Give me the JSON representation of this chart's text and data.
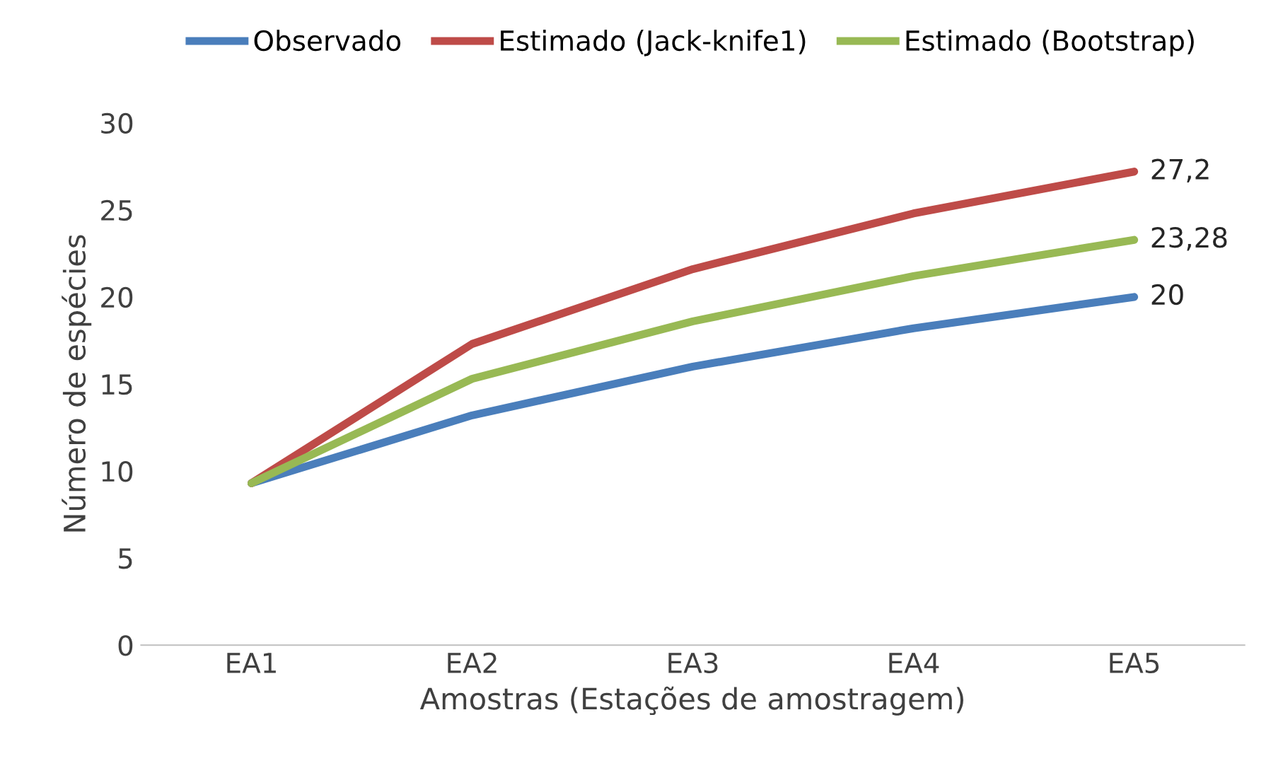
{
  "chart_data": {
    "type": "line",
    "xlabel": "Amostras (Estações de amostragem)",
    "ylabel": "Número de espécies",
    "categories": [
      "EA1",
      "EA2",
      "EA3",
      "EA4",
      "EA5"
    ],
    "series": [
      {
        "name": "Observado",
        "color": "#4a7ebb",
        "values": [
          9.3,
          13.2,
          16.0,
          18.2,
          20
        ],
        "value_labels": [
          null,
          null,
          null,
          null,
          "20"
        ]
      },
      {
        "name": "Estimado (Jack-knife1)",
        "color": "#be4b48",
        "values": [
          9.3,
          17.3,
          21.6,
          24.8,
          27.2
        ],
        "value_labels": [
          null,
          null,
          null,
          null,
          "27,2"
        ]
      },
      {
        "name": "Estimado (Bootstrap)",
        "color": "#98b954",
        "values": [
          9.3,
          15.3,
          18.6,
          21.2,
          23.28
        ],
        "value_labels": [
          null,
          null,
          null,
          null,
          "23,28"
        ]
      }
    ],
    "ylim": [
      0,
      30
    ],
    "yticks": [
      0,
      5,
      10,
      15,
      20,
      25,
      30
    ],
    "grid": false,
    "legend": "top",
    "marker": "none",
    "line_style": "solid"
  }
}
